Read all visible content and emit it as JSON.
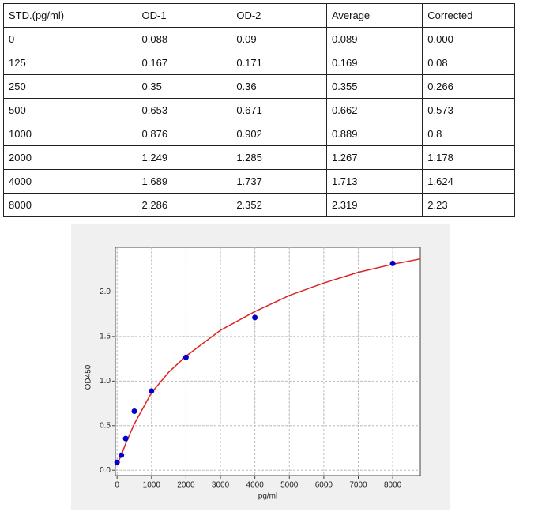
{
  "table": {
    "header": [
      "STD.(pg/ml)",
      "OD-1",
      "OD-2",
      "Average",
      "Corrected"
    ],
    "rows": [
      [
        "0",
        "0.088",
        "0.09",
        "0.089",
        "0.000"
      ],
      [
        "125",
        "0.167",
        "0.171",
        "0.169",
        "0.08"
      ],
      [
        "250",
        "0.35",
        "0.36",
        "0.355",
        "0.266"
      ],
      [
        "500",
        "0.653",
        "0.671",
        "0.662",
        "0.573"
      ],
      [
        "1000",
        "0.876",
        "0.902",
        "0.889",
        "0.8"
      ],
      [
        "2000",
        "1.249",
        "1.285",
        "1.267",
        "1.178"
      ],
      [
        "4000",
        "1.689",
        "1.737",
        "1.713",
        "1.624"
      ],
      [
        "8000",
        "2.286",
        "2.352",
        "2.319",
        "2.23"
      ]
    ]
  },
  "chart_data": {
    "type": "scatter",
    "xlabel": "pg/ml",
    "ylabel": "OD450",
    "points": {
      "x": [
        0,
        125,
        250,
        500,
        1000,
        2000,
        4000,
        8000
      ],
      "y": [
        0.089,
        0.169,
        0.355,
        0.662,
        0.889,
        1.267,
        1.713,
        2.319
      ],
      "color": "#0000cc"
    },
    "curve": {
      "x": [
        0,
        125,
        250,
        500,
        1000,
        1500,
        2000,
        3000,
        4000,
        5000,
        6000,
        7000,
        8000,
        8800
      ],
      "y": [
        0.07,
        0.17,
        0.3,
        0.52,
        0.87,
        1.1,
        1.28,
        1.57,
        1.78,
        1.96,
        2.1,
        2.22,
        2.31,
        2.37
      ],
      "color": "#dd2222"
    },
    "xlim": [
      -50,
      8800
    ],
    "ylim": [
      -0.06,
      2.5
    ],
    "xticks": [
      0,
      1000,
      2000,
      3000,
      4000,
      5000,
      6000,
      7000,
      8000
    ],
    "yticks": [
      {
        "value": 0,
        "label": "0.0"
      },
      0.5,
      {
        "value": 1,
        "label": "1.0"
      },
      1.5,
      {
        "value": 2,
        "label": "2.0"
      }
    ],
    "grid": true
  }
}
